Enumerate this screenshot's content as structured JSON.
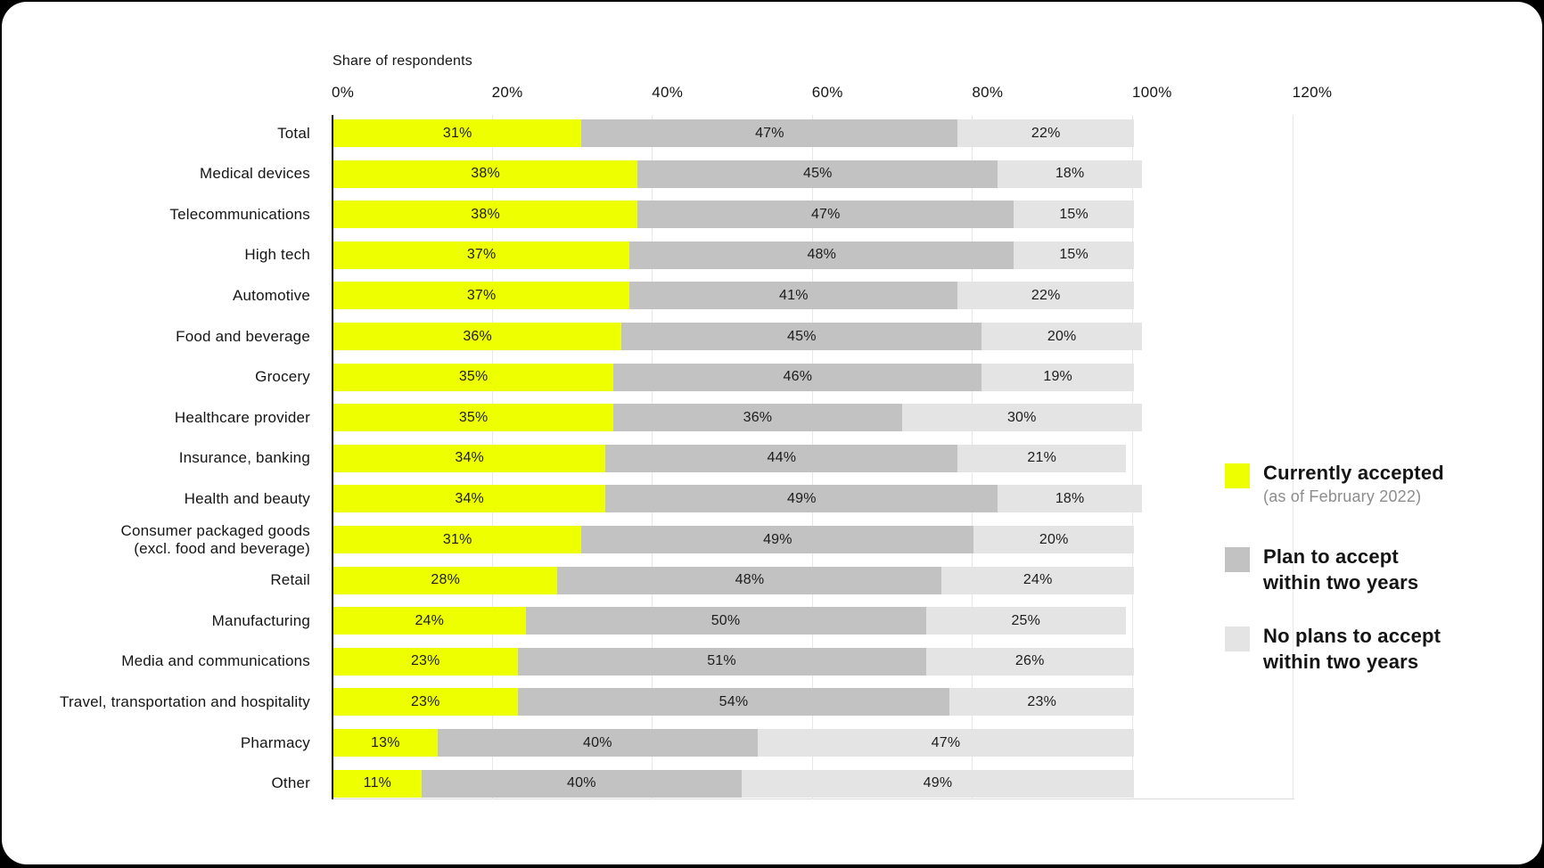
{
  "page": {
    "background_color": "#000000",
    "card_color": "#ffffff"
  },
  "chart_data": {
    "type": "bar",
    "variant": "horizontal-stacked",
    "title": "Share of respondents",
    "value_suffix": "%",
    "x_axis": {
      "tick_labels": [
        "0%",
        "20%",
        "40%",
        "60%",
        "80%",
        "100%",
        "120%"
      ],
      "tick_values": [
        0,
        20,
        40,
        60,
        80,
        100,
        120
      ],
      "min": 0,
      "max": 120,
      "grid": true
    },
    "categories": [
      "Total",
      "Medical devices",
      "Telecommunications",
      "High tech",
      "Automotive",
      "Food and beverage",
      "Grocery",
      "Healthcare provider",
      "Insurance, banking",
      "Health and beauty",
      "Consumer packaged goods\n(excl. food and beverage)",
      "Retail",
      "Manufacturing",
      "Media and communications",
      "Travel, transportation and hospitality",
      "Pharmacy",
      "Other"
    ],
    "series": [
      {
        "key": "currently-accepted",
        "name": "Currently accepted (as of February 2022)",
        "color": "#eeff00",
        "label_color": "#1c1c1c",
        "values": [
          31,
          38,
          38,
          37,
          37,
          36,
          35,
          35,
          34,
          34,
          31,
          28,
          24,
          23,
          23,
          13,
          11
        ]
      },
      {
        "key": "plan-to-accept",
        "name": "Plan to accept within two years",
        "color": "#c2c2c2",
        "label_color": "#1c1c1c",
        "values": [
          47,
          45,
          47,
          48,
          41,
          45,
          46,
          36,
          44,
          49,
          49,
          48,
          50,
          51,
          54,
          40,
          40
        ]
      },
      {
        "key": "no-plans-to-accept",
        "name": "No plans to accept within two years",
        "color": "#e4e4e4",
        "label_color": "#1c1c1c",
        "values": [
          22,
          18,
          15,
          15,
          22,
          20,
          19,
          30,
          21,
          18,
          20,
          24,
          25,
          26,
          23,
          47,
          49
        ]
      }
    ],
    "legend_position": "right",
    "grid_color": "#e7e7e7",
    "axis_line_color": "#000000"
  },
  "legend": {
    "items": [
      {
        "label": "Currently accepted",
        "sublabel": "(as of February 2022)",
        "color": "#eeff00"
      },
      {
        "label": "Plan to accept\nwithin two years",
        "sublabel": "",
        "color": "#c2c2c2"
      },
      {
        "label": "No plans to accept\nwithin two years",
        "sublabel": "",
        "color": "#e4e4e4"
      }
    ]
  }
}
